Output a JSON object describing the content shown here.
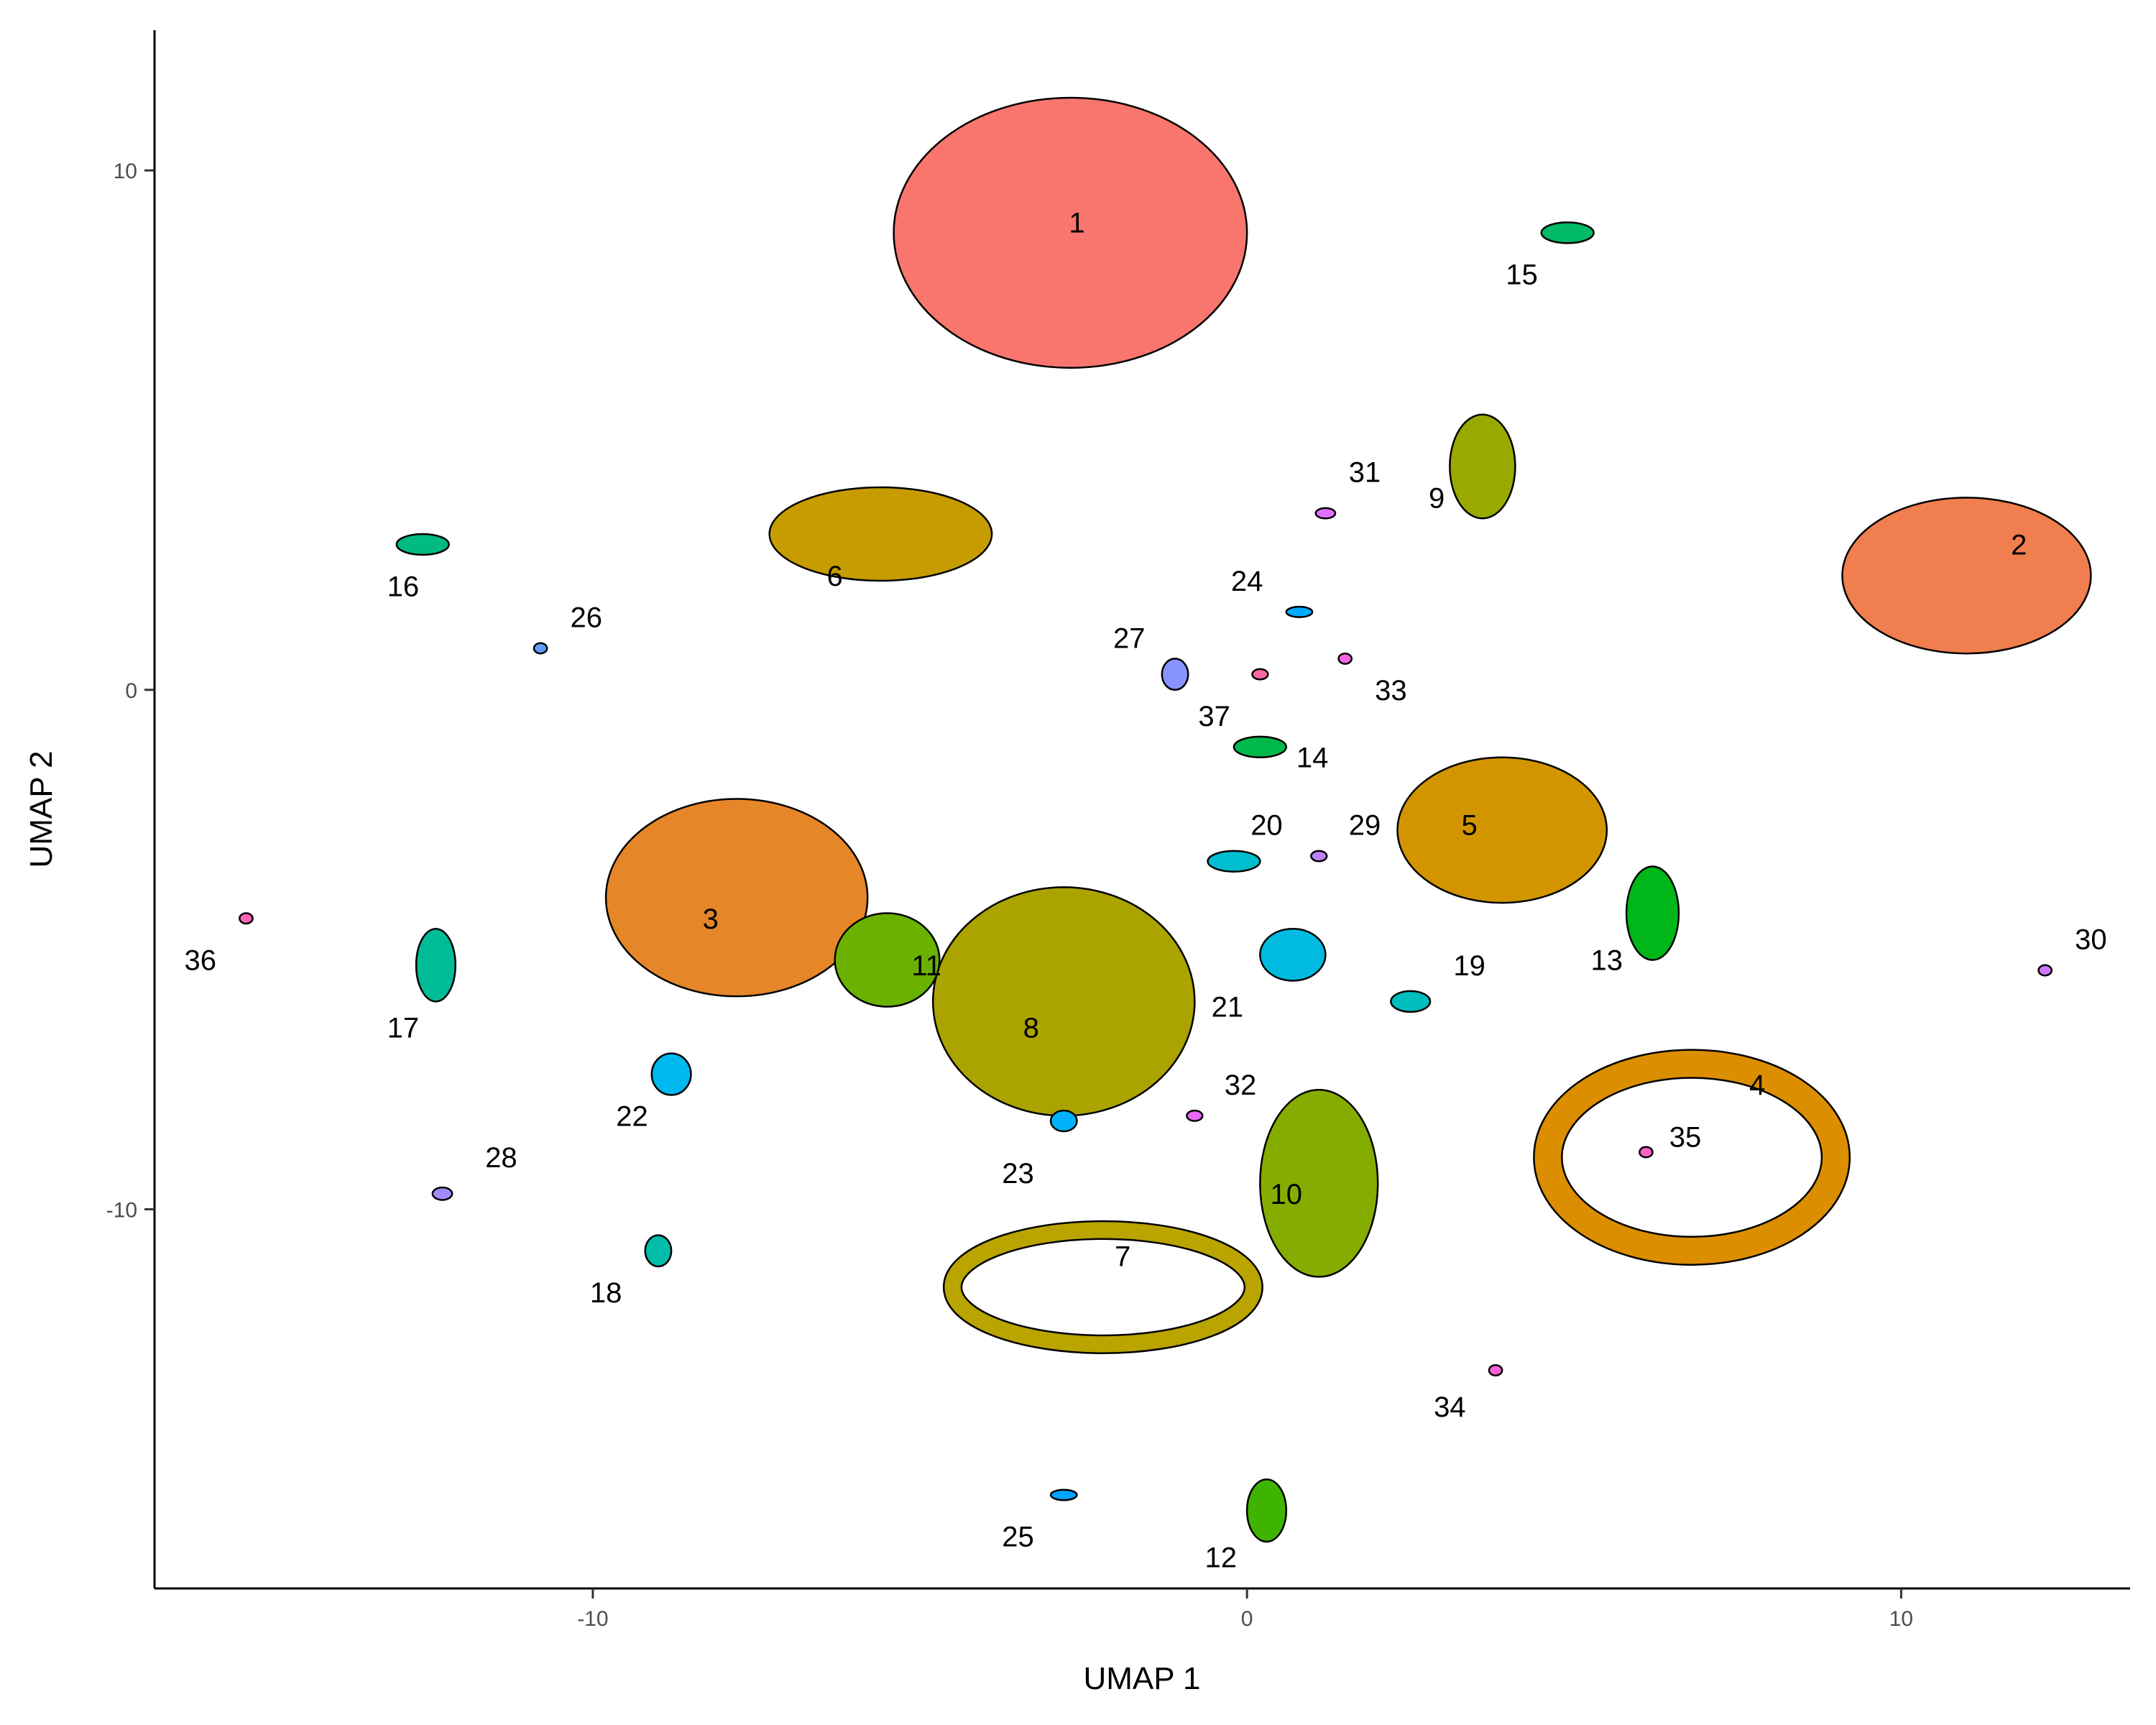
{
  "chart_data": {
    "type": "scatter",
    "title": "",
    "xlabel": "UMAP 1",
    "ylabel": "UMAP 2",
    "xlim": [
      -16.7,
      13.5
    ],
    "ylim": [
      -17.3,
      12.7
    ],
    "x_ticks": [
      -10,
      0,
      10
    ],
    "y_ticks": [
      10,
      0,
      -10
    ],
    "grid": false,
    "legend": "none",
    "clusters": [
      {
        "label": "1",
        "color": "#F8766D",
        "x": -2.7,
        "y": 8.8,
        "rx": 2.7,
        "ry": 2.6,
        "label_pos": [
          -2.6,
          9.0
        ]
      },
      {
        "label": "2",
        "color": "#F07E4E",
        "x": 11.0,
        "y": 2.2,
        "rx": 1.9,
        "ry": 1.5,
        "label_pos": [
          11.8,
          2.8
        ]
      },
      {
        "label": "3",
        "color": "#E58628",
        "x": -7.8,
        "y": -4.0,
        "rx": 2.0,
        "ry": 1.9,
        "label_pos": [
          -8.2,
          -4.4
        ]
      },
      {
        "label": "4",
        "color": "#DB8E00",
        "x": 6.8,
        "y": -9.0,
        "rx": 2.2,
        "ry": 1.8,
        "label_pos": [
          7.8,
          -7.6
        ],
        "ring": true
      },
      {
        "label": "5",
        "color": "#D29500",
        "x": 3.9,
        "y": -2.7,
        "rx": 1.6,
        "ry": 1.4,
        "label_pos": [
          3.4,
          -2.6
        ]
      },
      {
        "label": "6",
        "color": "#C69C00",
        "x": -5.6,
        "y": 3.0,
        "rx": 1.7,
        "ry": 0.9,
        "label_pos": [
          -6.3,
          2.2
        ]
      },
      {
        "label": "7",
        "color": "#B9A400",
        "x": -2.2,
        "y": -11.5,
        "rx": 2.3,
        "ry": 1.1,
        "label_pos": [
          -1.9,
          -10.9
        ],
        "ring": true
      },
      {
        "label": "8",
        "color": "#ABA300",
        "x": -2.8,
        "y": -6.0,
        "rx": 2.0,
        "ry": 2.2,
        "label_pos": [
          -3.3,
          -6.5
        ]
      },
      {
        "label": "9",
        "color": "#9AA900",
        "x": 3.6,
        "y": 4.3,
        "rx": 0.5,
        "ry": 1.0,
        "label_pos": [
          2.9,
          3.7
        ]
      },
      {
        "label": "10",
        "color": "#85AD00",
        "x": 1.1,
        "y": -9.5,
        "rx": 0.9,
        "ry": 1.8,
        "label_pos": [
          0.6,
          -9.7
        ]
      },
      {
        "label": "11",
        "color": "#6BB100",
        "x": -5.5,
        "y": -5.2,
        "rx": 0.8,
        "ry": 0.9,
        "label_pos": [
          -4.9,
          -5.3
        ]
      },
      {
        "label": "12",
        "color": "#3EB400",
        "x": 0.3,
        "y": -15.8,
        "rx": 0.3,
        "ry": 0.6,
        "label_pos": [
          -0.4,
          -16.7
        ]
      },
      {
        "label": "13",
        "color": "#00B619",
        "x": 6.2,
        "y": -4.3,
        "rx": 0.4,
        "ry": 0.9,
        "label_pos": [
          5.5,
          -5.2
        ]
      },
      {
        "label": "14",
        "color": "#00B84B",
        "x": 0.2,
        "y": -1.1,
        "rx": 0.4,
        "ry": 0.2,
        "label_pos": [
          1.0,
          -1.3
        ]
      },
      {
        "label": "15",
        "color": "#00BA68",
        "x": 4.9,
        "y": 8.8,
        "rx": 0.4,
        "ry": 0.2,
        "label_pos": [
          4.2,
          8.0
        ]
      },
      {
        "label": "16",
        "color": "#00BB80",
        "x": -12.6,
        "y": 2.8,
        "rx": 0.4,
        "ry": 0.2,
        "label_pos": [
          -12.9,
          2.0
        ]
      },
      {
        "label": "17",
        "color": "#00BC96",
        "x": -12.4,
        "y": -5.3,
        "rx": 0.3,
        "ry": 0.7,
        "label_pos": [
          -12.9,
          -6.5
        ]
      },
      {
        "label": "18",
        "color": "#00BDAA",
        "x": -9.0,
        "y": -10.8,
        "rx": 0.2,
        "ry": 0.3,
        "label_pos": [
          -9.8,
          -11.6
        ]
      },
      {
        "label": "19",
        "color": "#00BEBD",
        "x": 2.5,
        "y": -6.0,
        "rx": 0.3,
        "ry": 0.2,
        "label_pos": [
          3.4,
          -5.3
        ]
      },
      {
        "label": "20",
        "color": "#00BDCF",
        "x": -0.2,
        "y": -3.3,
        "rx": 0.4,
        "ry": 0.2,
        "label_pos": [
          0.3,
          -2.6
        ]
      },
      {
        "label": "21",
        "color": "#00BBDF",
        "x": 0.7,
        "y": -5.1,
        "rx": 0.5,
        "ry": 0.5,
        "label_pos": [
          -0.3,
          -6.1
        ]
      },
      {
        "label": "22",
        "color": "#00B7EE",
        "x": -8.8,
        "y": -7.4,
        "rx": 0.3,
        "ry": 0.4,
        "label_pos": [
          -9.4,
          -8.2
        ]
      },
      {
        "label": "23",
        "color": "#00B2F9",
        "x": -2.8,
        "y": -8.3,
        "rx": 0.2,
        "ry": 0.2,
        "label_pos": [
          -3.5,
          -9.3
        ]
      },
      {
        "label": "24",
        "color": "#00ABFD",
        "x": 0.8,
        "y": 1.5,
        "rx": 0.2,
        "ry": 0.1,
        "label_pos": [
          0.0,
          2.1
        ]
      },
      {
        "label": "25",
        "color": "#00A3FF",
        "x": -2.8,
        "y": -15.5,
        "rx": 0.2,
        "ry": 0.1,
        "label_pos": [
          -3.5,
          -16.3
        ]
      },
      {
        "label": "26",
        "color": "#619CFF",
        "x": -10.8,
        "y": 0.8,
        "rx": 0.1,
        "ry": 0.1,
        "label_pos": [
          -10.1,
          1.4
        ]
      },
      {
        "label": "27",
        "color": "#8794FF",
        "x": -1.1,
        "y": 0.3,
        "rx": 0.2,
        "ry": 0.3,
        "label_pos": [
          -1.8,
          1.0
        ]
      },
      {
        "label": "28",
        "color": "#A58AFF",
        "x": -12.3,
        "y": -9.7,
        "rx": 0.15,
        "ry": 0.12,
        "label_pos": [
          -11.4,
          -9.0
        ]
      },
      {
        "label": "29",
        "color": "#BD81FF",
        "x": 1.1,
        "y": -3.2,
        "rx": 0.12,
        "ry": 0.1,
        "label_pos": [
          1.8,
          -2.6
        ]
      },
      {
        "label": "30",
        "color": "#D078FF",
        "x": 12.2,
        "y": -5.4,
        "rx": 0.1,
        "ry": 0.1,
        "label_pos": [
          12.9,
          -4.8
        ]
      },
      {
        "label": "31",
        "color": "#E06FFF",
        "x": 1.2,
        "y": 3.4,
        "rx": 0.15,
        "ry": 0.1,
        "label_pos": [
          1.8,
          4.2
        ]
      },
      {
        "label": "32",
        "color": "#EB67F5",
        "x": -0.8,
        "y": -8.2,
        "rx": 0.12,
        "ry": 0.1,
        "label_pos": [
          -0.1,
          -7.6
        ]
      },
      {
        "label": "33",
        "color": "#F564E3",
        "x": 1.5,
        "y": 0.6,
        "rx": 0.1,
        "ry": 0.1,
        "label_pos": [
          2.2,
          0.0
        ]
      },
      {
        "label": "34",
        "color": "#FC61D5",
        "x": 3.8,
        "y": -13.1,
        "rx": 0.1,
        "ry": 0.1,
        "label_pos": [
          3.1,
          -13.8
        ]
      },
      {
        "label": "35",
        "color": "#FF61C3",
        "x": 6.1,
        "y": -8.9,
        "rx": 0.1,
        "ry": 0.1,
        "label_pos": [
          6.7,
          -8.6
        ]
      },
      {
        "label": "36",
        "color": "#FF63B6",
        "x": -15.3,
        "y": -4.4,
        "rx": 0.1,
        "ry": 0.1,
        "label_pos": [
          -16.0,
          -5.2
        ]
      },
      {
        "label": "37",
        "color": "#FF67A4",
        "x": 0.2,
        "y": 0.3,
        "rx": 0.12,
        "ry": 0.1,
        "label_pos": [
          -0.5,
          -0.5
        ]
      }
    ]
  }
}
